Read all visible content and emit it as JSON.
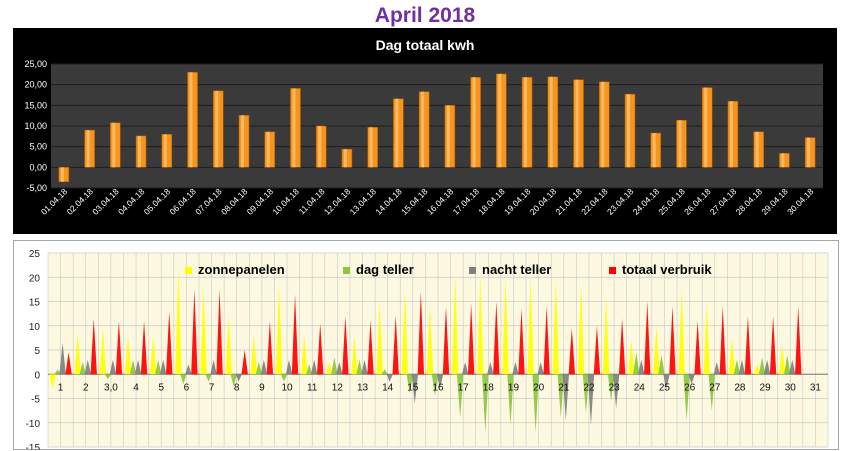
{
  "page": {
    "title": "April 2018"
  },
  "chart_data": [
    {
      "type": "bar",
      "title": "Dag totaal kwh",
      "xlabel": "",
      "ylabel": "",
      "ylim": [
        -5,
        25
      ],
      "yticks": [
        "-5,00",
        "0,00",
        "5,00",
        "10,00",
        "15,00",
        "20,00",
        "25,00"
      ],
      "grid": true,
      "colors": {
        "background": "#000000",
        "plot": "#3a3a3a",
        "bar": "#f7941d",
        "text": "#ffffff"
      },
      "categories": [
        "01.04.18",
        "02.04.18",
        "03.04.18",
        "04.04.18",
        "05.04.18",
        "06.04.18",
        "07.04.18",
        "08.04.18",
        "09.04.18",
        "10.04.18",
        "11.04.18",
        "12.04.18",
        "13.04.18",
        "14.04.18",
        "15.04.18",
        "16.04.18",
        "17.04.18",
        "18.04.18",
        "19.04.18",
        "20.04.18",
        "21.04.18",
        "22.04.18",
        "23.04.18",
        "24.04.18",
        "25.04.18",
        "26.04.18",
        "27.04.18",
        "28.04.18",
        "29.04.18",
        "30.04.18"
      ],
      "values": [
        -3.5,
        9.0,
        10.8,
        7.6,
        8.0,
        23.0,
        18.5,
        12.6,
        8.6,
        19.1,
        10.0,
        4.4,
        9.7,
        16.6,
        18.3,
        15.0,
        21.8,
        22.6,
        21.8,
        21.9,
        21.2,
        20.7,
        17.7,
        8.3,
        11.4,
        19.3,
        16.0,
        8.6,
        3.4,
        7.2
      ]
    },
    {
      "type": "area",
      "title": "",
      "ylim": [
        -15,
        25
      ],
      "yticks": [
        "-15",
        "-10",
        "-5",
        "0",
        "5",
        "10",
        "15",
        "20",
        "25"
      ],
      "grid": true,
      "legend_position": "top",
      "colors": {
        "background": "#fdf9e0",
        "grid": "#c8c8c8"
      },
      "categories": [
        "1",
        "2",
        "3,0",
        "4",
        "5",
        "6",
        "7",
        "8",
        "9",
        "10",
        "11",
        "12",
        "13",
        "14",
        "15",
        "16",
        "17",
        "18",
        "19",
        "20",
        "21",
        "22",
        "23",
        "24",
        "25",
        "26",
        "27",
        "28",
        "29",
        "30",
        "31"
      ],
      "series": [
        {
          "name": "zonnepanelen",
          "color": "#ffff00",
          "values": [
            -3.0,
            8.5,
            9.5,
            8.0,
            8.0,
            22.0,
            18.0,
            12.0,
            8.0,
            18.5,
            8.0,
            2.5,
            8.0,
            15.0,
            17.5,
            14.0,
            20.5,
            20.5,
            20.0,
            20.0,
            20.0,
            19.0,
            16.0,
            7.0,
            10.0,
            17.5,
            14.5,
            7.5,
            2.0,
            6.0,
            0
          ]
        },
        {
          "name": "dag teller",
          "color": "#8dc63f",
          "values": [
            1.0,
            2.5,
            -1.0,
            3.0,
            3.0,
            -2.0,
            -1.5,
            -2.5,
            2.5,
            -1.5,
            2.0,
            3.5,
            3.0,
            1.0,
            -4.0,
            -4.5,
            -9.0,
            -12.0,
            -10.5,
            -12.0,
            -9.0,
            -8.0,
            -5.5,
            4.5,
            4.0,
            -9.5,
            -7.5,
            3.0,
            3.5,
            4.0,
            0
          ]
        },
        {
          "name": "nacht teller",
          "color": "#7f7f7f",
          "values": [
            6.5,
            3.0,
            3.0,
            3.0,
            3.0,
            2.0,
            3.0,
            -1.5,
            3.0,
            3.0,
            3.0,
            2.5,
            3.0,
            -1.5,
            -6.0,
            -3.0,
            2.5,
            2.5,
            2.5,
            2.5,
            -9.5,
            -10.5,
            -7.0,
            3.0,
            -3.0,
            -2.0,
            2.5,
            3.0,
            3.0,
            3.0,
            0
          ]
        },
        {
          "name": "totaal verbruik",
          "color": "#ff0000",
          "values": [
            4.5,
            11.5,
            11.0,
            11.0,
            13.0,
            17.5,
            17.5,
            5.0,
            11.0,
            16.5,
            10.5,
            12.0,
            11.0,
            12.0,
            17.0,
            14.0,
            14.5,
            15.0,
            13.5,
            14.0,
            9.5,
            10.0,
            11.5,
            15.0,
            14.0,
            11.0,
            14.0,
            12.0,
            12.0,
            14.0,
            0
          ]
        }
      ]
    }
  ]
}
